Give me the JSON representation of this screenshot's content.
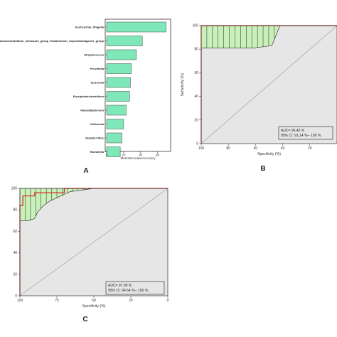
{
  "chart_data": [
    {
      "panel": "A",
      "type": "bar",
      "orientation": "horizontal",
      "categories": [
        "Escherichia_Shigella",
        "Lachnoclostridium_ramlosum_group_Eubacterium_coprostanoligenes_group",
        "Streptococcus",
        "Prevotella",
        "Tyzzerella",
        "Erysipelatoclostridium",
        "Faecalibacterium",
        "Veillonella",
        "Dialister-Rice",
        "Ruminella"
      ],
      "values": [
        70,
        42,
        35,
        29,
        28,
        27,
        23,
        20,
        18,
        16
      ],
      "xlabel": "MeanDecreaseAccuracy",
      "xticks": [
        0,
        20,
        40,
        60
      ],
      "xlim": [
        0,
        72
      ],
      "bar_color": "#7ee8b9",
      "panel_label": "A"
    },
    {
      "panel": "B",
      "type": "line",
      "xlabel": "Specificity (%)",
      "ylabel": "Sensitivity (%)",
      "xticks": [
        100,
        80,
        60,
        40,
        20
      ],
      "yticks": [
        0,
        20,
        40,
        60,
        80,
        100
      ],
      "xlim": [
        100,
        0
      ],
      "ylim": [
        0,
        100
      ],
      "roc_specificity": [
        100,
        100,
        100,
        100,
        100,
        80,
        60,
        40,
        20,
        0
      ],
      "roc_sensitivity": [
        0,
        30,
        70,
        91,
        100,
        100,
        100,
        100,
        100,
        100
      ],
      "ci_upper_specificity": [
        100,
        80,
        60,
        40
      ],
      "ci_upper_sensitivity": [
        100,
        100,
        100,
        100
      ],
      "ci_lower_specificity": [
        100,
        80,
        62,
        48,
        42
      ],
      "ci_lower_sensitivity": [
        81,
        81,
        81,
        83,
        100
      ],
      "annotation": [
        "AUC= 96.42 %",
        "95% CI: 91.14 %-- 100 %"
      ],
      "panel_label": "B"
    },
    {
      "panel": "C",
      "type": "line",
      "xlabel": "Specificity (%)",
      "ylabel": "",
      "xticks": [
        100,
        75,
        50,
        25,
        0
      ],
      "yticks": [
        0,
        20,
        40,
        60,
        80,
        100
      ],
      "xlim": [
        100,
        0
      ],
      "ylim": [
        0,
        100
      ],
      "roc_specificity": [
        100,
        100,
        100,
        98,
        98,
        90,
        90,
        70,
        70,
        50,
        0
      ],
      "roc_sensitivity": [
        0,
        60,
        84,
        84,
        93,
        93,
        96,
        96,
        100,
        100,
        100
      ],
      "ci_upper_specificity": [
        100,
        60,
        60,
        0
      ],
      "ci_upper_sensitivity": [
        100,
        100,
        100,
        100
      ],
      "ci_lower_specificity": [
        100,
        94,
        90,
        88,
        84,
        80,
        74,
        66,
        50
      ],
      "ci_lower_sensitivity": [
        70,
        70,
        72,
        78,
        84,
        88,
        92,
        97,
        100
      ],
      "annotation": [
        "AUC= 97.99 %",
        "95% CI: 94.64 %-- 100 %"
      ],
      "panel_label": "C"
    }
  ],
  "colors": {
    "bar": "#7ee8b9",
    "ci_fill": "#c9f0b9",
    "roc": "#e02020",
    "diagonal": "#999999",
    "plot_bg": "#e6e6e6"
  }
}
